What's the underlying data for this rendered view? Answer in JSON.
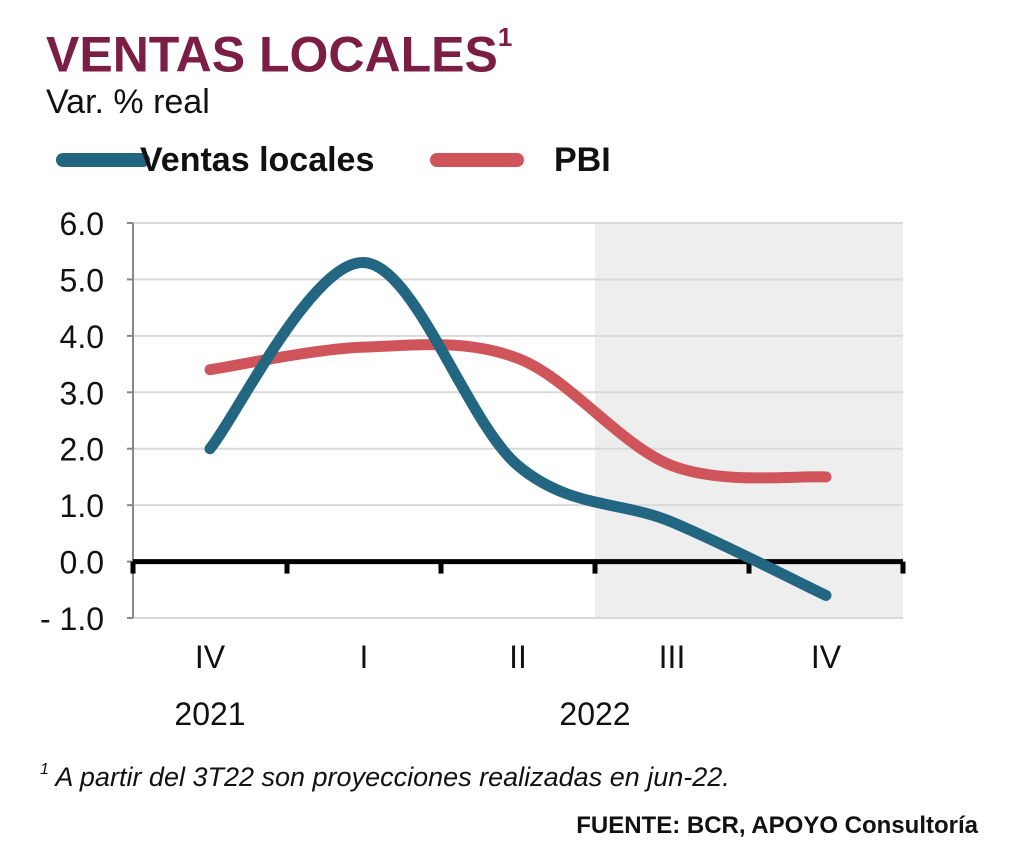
{
  "header": {
    "title": "VENTAS LOCALES",
    "title_note_marker": "1",
    "subtitle": "Var. % real"
  },
  "footer": {
    "footnote_marker": "1",
    "footnote": "A partir del 3T22 son proyecciones realizadas en jun-22.",
    "source": "FUENTE: BCR, APOYO Consultoría"
  },
  "colors": {
    "title": "#7b1d45",
    "ventas": "#236681",
    "pbi": "#d0555a",
    "projection_band": "#eeeeee",
    "gridline": "#d9d9d9",
    "zero_axis": "#000000"
  },
  "chart_data": {
    "type": "line",
    "categories": [
      "IV",
      "I",
      "II",
      "III",
      "IV"
    ],
    "year_labels": [
      {
        "label": "2021",
        "category_index": 0
      },
      {
        "label": "2022",
        "category_index": 2.5
      }
    ],
    "series": [
      {
        "name": "Ventas locales",
        "values": [
          2.0,
          5.3,
          1.7,
          0.7,
          -0.6
        ]
      },
      {
        "name": "PBI",
        "values": [
          3.4,
          3.8,
          3.6,
          1.7,
          1.5
        ]
      }
    ],
    "ylim": [
      -1.0,
      6.0
    ],
    "yticks": [
      "6.0",
      "5.0",
      "4.0",
      "3.0",
      "2.0",
      "1.0",
      "0.0",
      "- 1.0"
    ],
    "ytick_values": [
      6,
      5,
      4,
      3,
      2,
      1,
      0,
      -1
    ],
    "shaded_projection_from_category_index": 3,
    "grid": true,
    "legend": "top-left",
    "smooth": true
  }
}
